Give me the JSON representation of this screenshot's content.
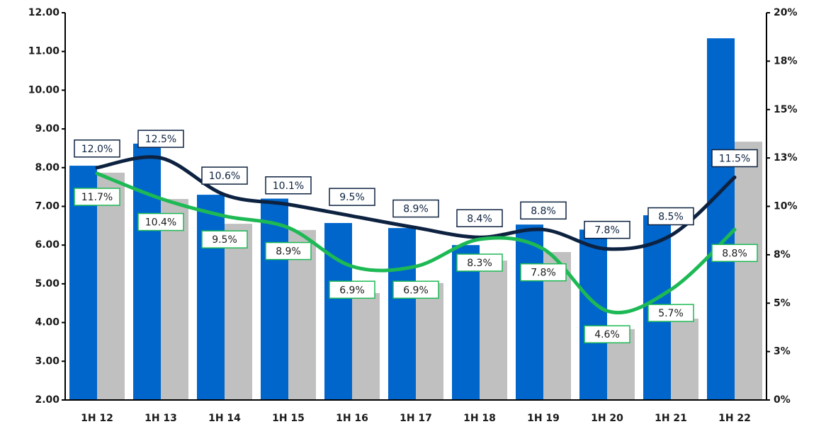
{
  "chart_data": {
    "type": "bar",
    "categories": [
      "1H 12",
      "1H 13",
      "1H 14",
      "1H 15",
      "1H 16",
      "1H 17",
      "1H 18",
      "1H 19",
      "1H 20",
      "1H 21",
      "1H 22"
    ],
    "ylim": [
      2,
      12
    ],
    "yticks": [
      {
        "value": 2,
        "label": "2.00"
      },
      {
        "value": 3,
        "label": "3.00"
      },
      {
        "value": 4,
        "label": "4.00"
      },
      {
        "value": 5,
        "label": "5.00"
      },
      {
        "value": 6,
        "label": "6.00"
      },
      {
        "value": 7,
        "label": "7.00"
      },
      {
        "value": 8,
        "label": "8.00"
      },
      {
        "value": 9,
        "label": "9.00"
      },
      {
        "value": 10,
        "label": "10.00"
      },
      {
        "value": 11,
        "label": "11.00"
      },
      {
        "value": 12,
        "label": "12.00"
      }
    ],
    "y2lim": [
      0,
      20
    ],
    "y2ticks": [
      {
        "value": 0,
        "label": "0%"
      },
      {
        "value": 2.5,
        "label": "3%"
      },
      {
        "value": 5,
        "label": "5%"
      },
      {
        "value": 7.5,
        "label": "8%"
      },
      {
        "value": 10,
        "label": "10%"
      },
      {
        "value": 12.5,
        "label": "13%"
      },
      {
        "value": 15,
        "label": "15%"
      },
      {
        "value": 17.5,
        "label": "18%"
      },
      {
        "value": 20,
        "label": "20%"
      }
    ],
    "series": [
      {
        "type": "bar",
        "color": "#0066cc",
        "values": [
          8.05,
          8.62,
          7.3,
          7.2,
          6.57,
          6.44,
          6.0,
          6.53,
          6.4,
          6.77,
          11.34
        ]
      },
      {
        "type": "bar",
        "color": "#c0c0c0",
        "values": [
          7.87,
          7.19,
          6.55,
          6.39,
          4.76,
          5.02,
          5.6,
          5.82,
          3.83,
          4.1,
          8.67
        ]
      },
      {
        "type": "line",
        "axis": "y2",
        "color": "#0d2240",
        "values": [
          12.0,
          12.5,
          10.6,
          10.1,
          9.5,
          8.9,
          8.4,
          8.8,
          7.8,
          8.5,
          11.5
        ],
        "value_labels": [
          "12.0%",
          "12.5%",
          "10.6%",
          "10.1%",
          "9.5%",
          "8.9%",
          "8.4%",
          "8.8%",
          "7.8%",
          "8.5%",
          "11.5%"
        ]
      },
      {
        "type": "line",
        "axis": "y2",
        "color": "#1db954",
        "values": [
          11.7,
          10.4,
          9.5,
          8.9,
          6.9,
          6.9,
          8.3,
          7.8,
          4.6,
          5.7,
          8.8
        ],
        "value_labels": [
          "11.7%",
          "10.4%",
          "9.5%",
          "8.9%",
          "6.9%",
          "6.9%",
          "8.3%",
          "7.8%",
          "4.6%",
          "5.7%",
          "8.8%"
        ]
      }
    ]
  }
}
